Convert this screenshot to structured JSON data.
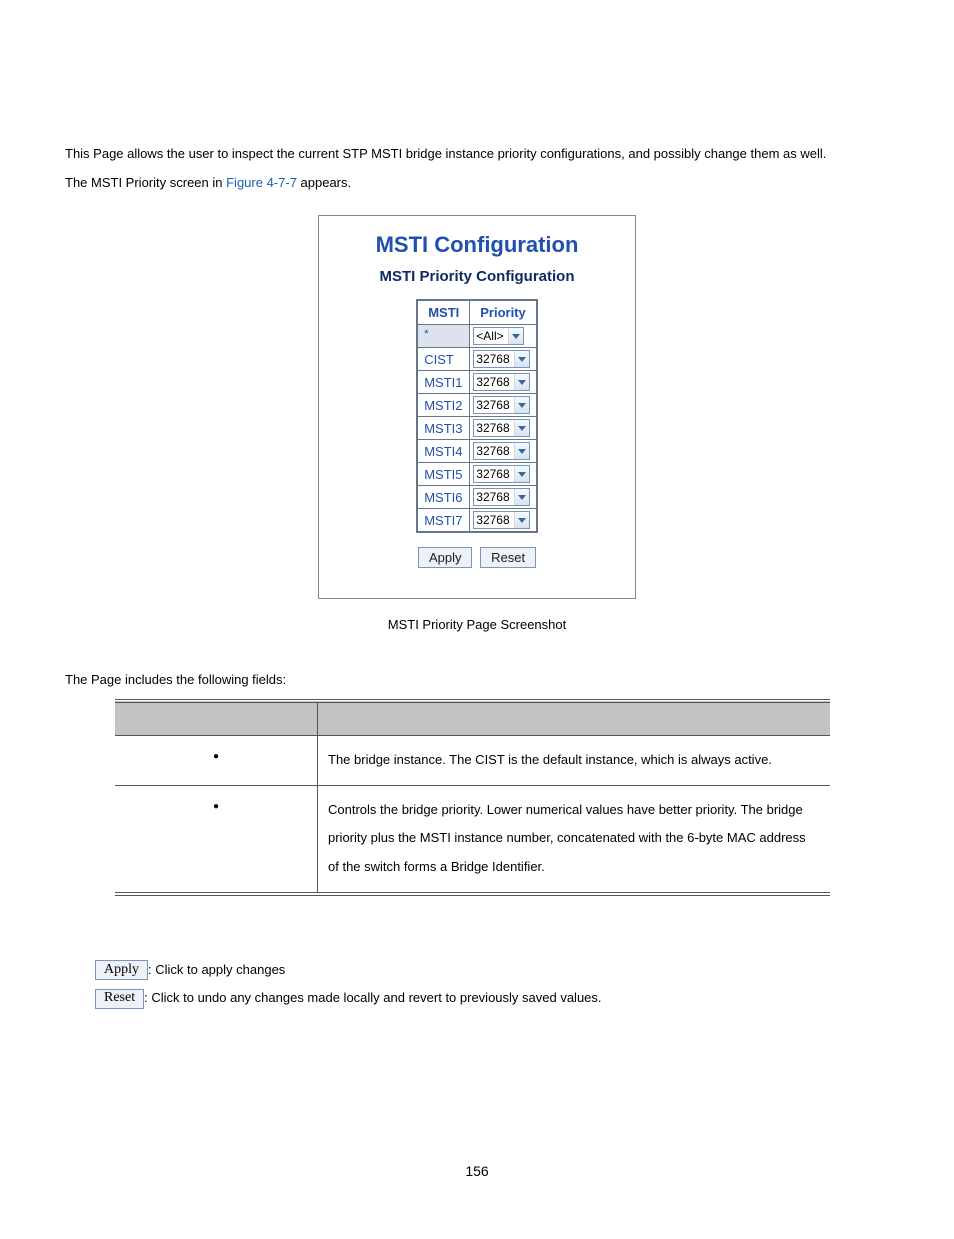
{
  "intro": {
    "line1": "This Page allows the user to inspect the current STP MSTI bridge instance priority configurations, and possibly change them as well.",
    "line2a": "The MSTI Priority screen in ",
    "figure_link": "Figure 4-7-7",
    "line2b": " appears."
  },
  "config": {
    "title": "MSTI Configuration",
    "subtitle": "MSTI Priority Configuration",
    "headers": {
      "msti": "MSTI",
      "priority": "Priority"
    },
    "rows": [
      {
        "msti": "*",
        "value": "<All>",
        "star": true
      },
      {
        "msti": "CIST",
        "value": "32768"
      },
      {
        "msti": "MSTI1",
        "value": "32768"
      },
      {
        "msti": "MSTI2",
        "value": "32768"
      },
      {
        "msti": "MSTI3",
        "value": "32768"
      },
      {
        "msti": "MSTI4",
        "value": "32768"
      },
      {
        "msti": "MSTI5",
        "value": "32768"
      },
      {
        "msti": "MSTI6",
        "value": "32768"
      },
      {
        "msti": "MSTI7",
        "value": "32768"
      }
    ],
    "apply_label": "Apply",
    "reset_label": "Reset"
  },
  "caption": "MSTI Priority Page Screenshot",
  "fields_intro": "The Page includes the following fields:",
  "fields_table": {
    "row1_desc": "The bridge instance. The CIST is the default instance, which is always active.",
    "row2_desc": "Controls the bridge priority. Lower numerical values have better priority. The bridge priority plus the MSTI instance number, concatenated with the 6-byte MAC address of the switch forms a Bridge Identifier."
  },
  "buttons_section": {
    "apply_btn": "Apply",
    "apply_text": ": Click to apply changes",
    "reset_btn": "Reset",
    "reset_text": ": Click to undo any changes made locally and revert to previously saved values."
  },
  "page_number": "156"
}
